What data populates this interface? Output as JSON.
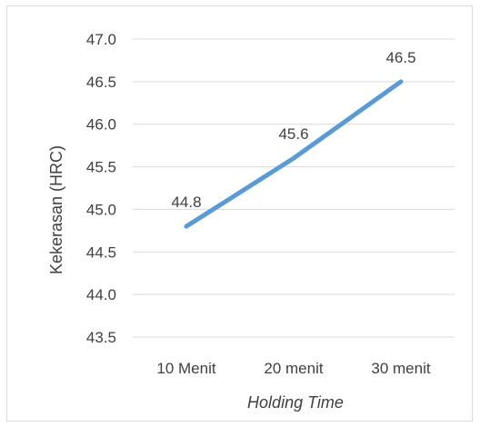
{
  "chart_data": {
    "type": "line",
    "title": "",
    "xlabel": "Holding Time",
    "ylabel": "Kekerasan (HRC)",
    "categories": [
      "10 Menit",
      "20 menit",
      "30 menit"
    ],
    "series": [
      {
        "values": [
          44.8,
          45.6,
          46.5
        ],
        "data_labels": [
          "44.8",
          "45.6",
          "46.5"
        ]
      }
    ],
    "ylim": [
      43.5,
      47.0
    ],
    "yticks": [
      "43.5",
      "44.0",
      "44.5",
      "45.0",
      "45.5",
      "46.0",
      "46.5",
      "47.0"
    ],
    "grid": true,
    "legend": "none",
    "colors": {
      "line": "#5b9bd5",
      "grid": "#d9d9d9",
      "text": "#404040"
    }
  }
}
